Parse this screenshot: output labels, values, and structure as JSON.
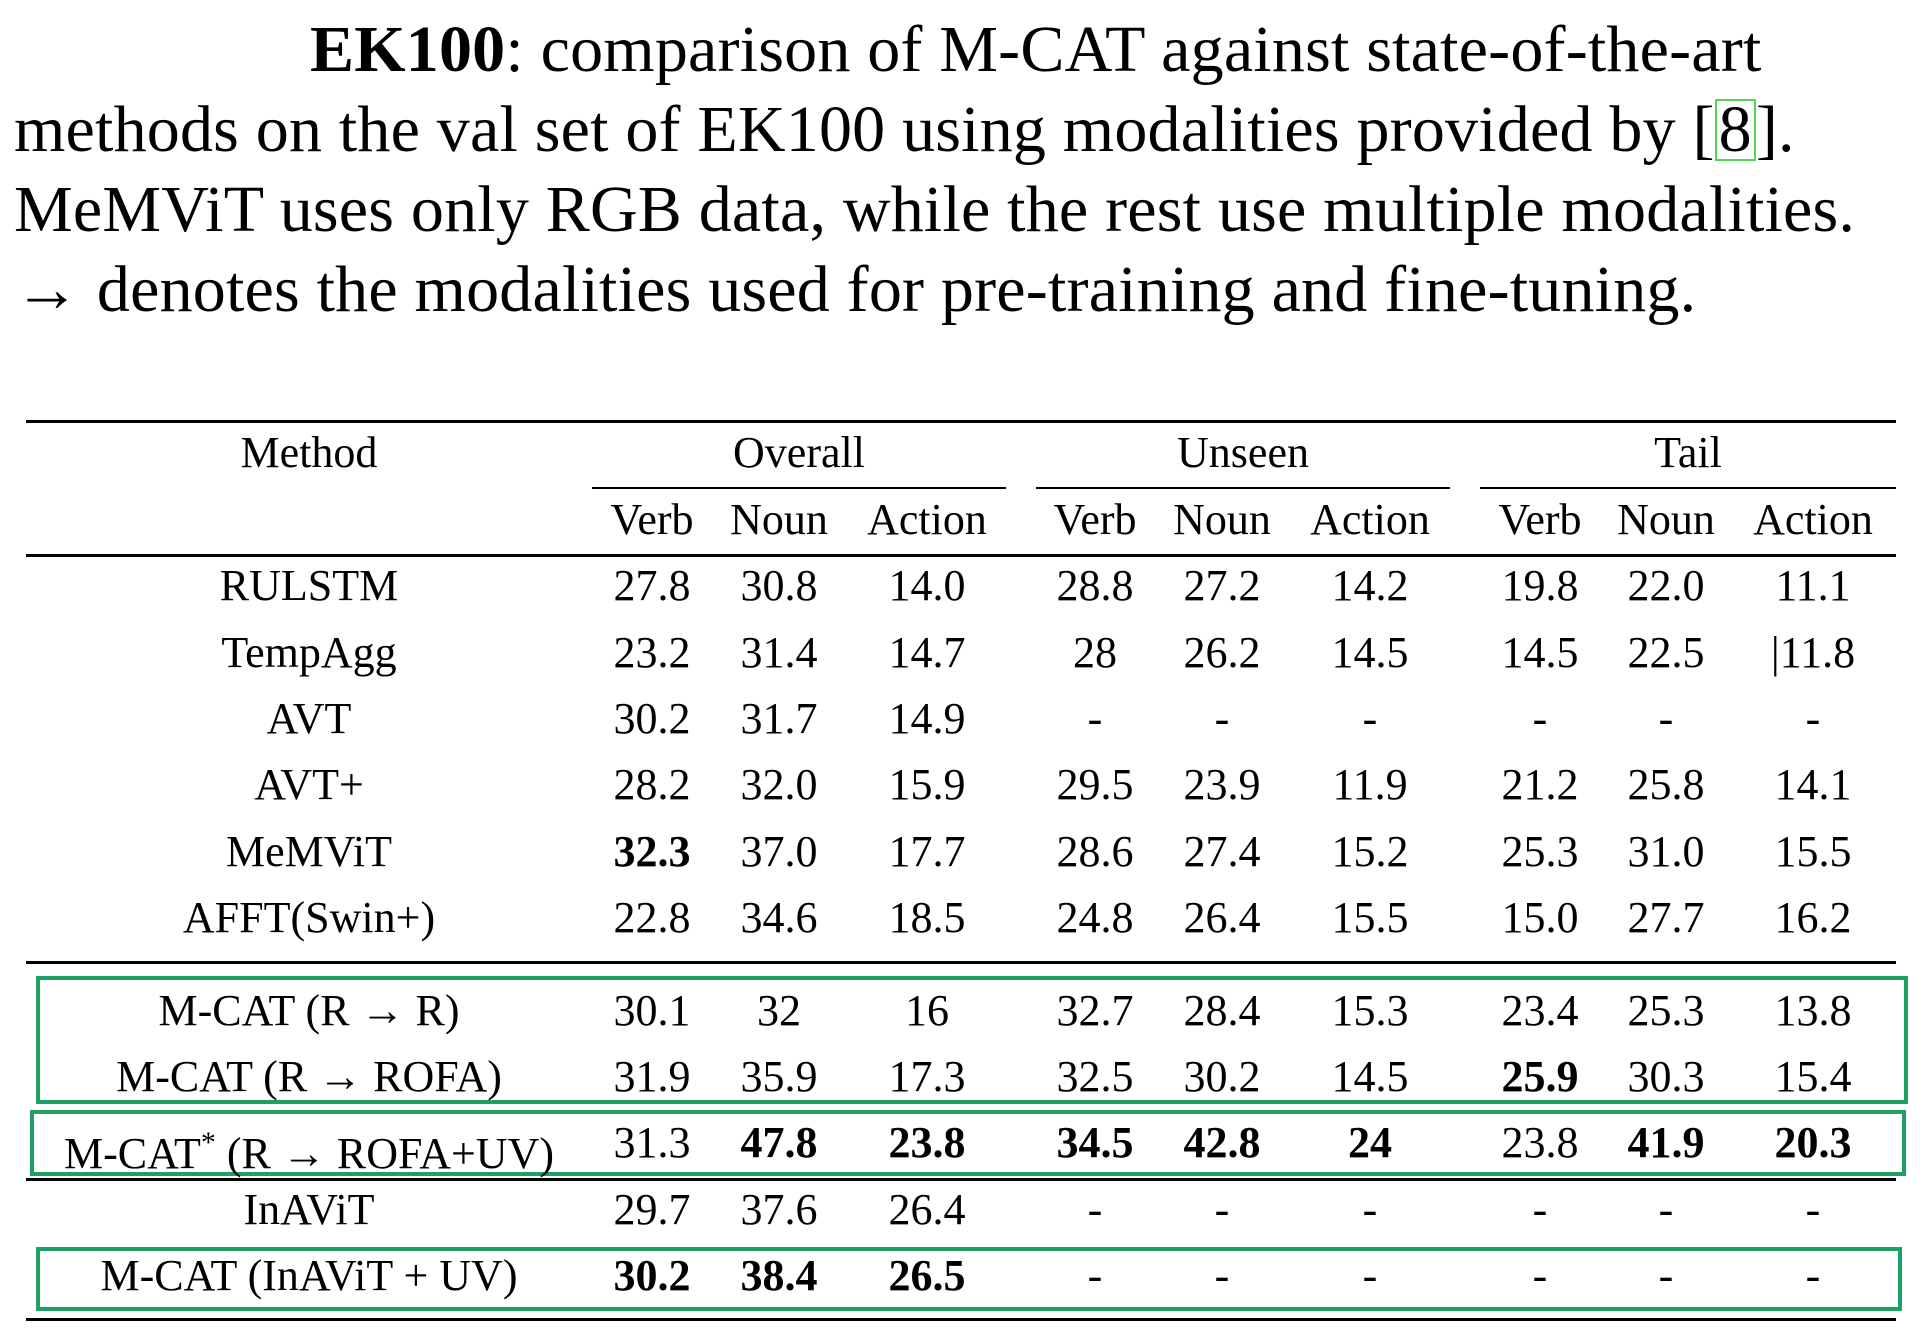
{
  "caption": {
    "label": "EK100",
    "line1_rest": ":  comparison of M-CAT against state-of-the-art",
    "line2_pre": "methods on the val set of EK100 using modalities provided by [",
    "line2_ref": "8",
    "line2_post": "].",
    "line3": "MeMViT uses only RGB data, while the rest use multiple modalities.",
    "line4": "→ denotes the modalities used for pre-training and fine-tuning."
  },
  "table": {
    "method_header": "Method",
    "groups": [
      "Overall",
      "Unseen",
      "Tail"
    ],
    "subheaders": [
      "Verb",
      "Noun",
      "Action",
      "Verb",
      "Noun",
      "Action",
      "Verb",
      "Noun",
      "Action"
    ],
    "rows": [
      {
        "method": "RULSTM",
        "values": [
          "27.8",
          "30.8",
          "14.0",
          "28.8",
          "27.2",
          "14.2",
          "19.8",
          "22.0",
          "11.1"
        ],
        "bold": []
      },
      {
        "method": "TempAgg",
        "values": [
          "23.2",
          "31.4",
          "14.7",
          "28",
          "26.2",
          "14.5",
          "14.5",
          "22.5",
          "|11.8"
        ],
        "bold": []
      },
      {
        "method": "AVT",
        "values": [
          "30.2",
          "31.7",
          "14.9",
          "-",
          "-",
          "-",
          "-",
          "-",
          "-"
        ],
        "bold": []
      },
      {
        "method": "AVT+",
        "values": [
          "28.2",
          "32.0",
          "15.9",
          "29.5",
          "23.9",
          "11.9",
          "21.2",
          "25.8",
          "14.1"
        ],
        "bold": []
      },
      {
        "method": "MeMViT",
        "values": [
          "32.3",
          "37.0",
          "17.7",
          "28.6",
          "27.4",
          "15.2",
          "25.3",
          "31.0",
          "15.5"
        ],
        "bold": [
          0
        ]
      },
      {
        "method": "AFFT(Swin+)",
        "values": [
          "22.8",
          "34.6",
          "18.5",
          "24.8",
          "26.4",
          "15.5",
          "15.0",
          "27.7",
          "16.2"
        ],
        "bold": []
      },
      {
        "method": "M-CAT (R → R)",
        "values": [
          "30.1",
          "32",
          "16",
          "32.7",
          "28.4",
          "15.3",
          "23.4",
          "25.3",
          "13.8"
        ],
        "bold": []
      },
      {
        "method": "M-CAT (R → ROFA)",
        "values": [
          "31.9",
          "35.9",
          "17.3",
          "32.5",
          "30.2",
          "14.5",
          "25.9",
          "30.3",
          "15.4"
        ],
        "bold": [
          6
        ]
      },
      {
        "method": "M-CAT",
        "method_sup": "*",
        "method_rest": " (R → ROFA+UV)",
        "values": [
          "31.3",
          "47.8",
          "23.8",
          "34.5",
          "42.8",
          "24",
          "23.8",
          "41.9",
          "20.3"
        ],
        "bold": [
          1,
          2,
          3,
          4,
          5,
          7,
          8
        ]
      },
      {
        "method": "InAViT",
        "values": [
          "29.7",
          "37.6",
          "26.4",
          "-",
          "-",
          "-",
          "-",
          "-",
          "-"
        ],
        "bold": []
      },
      {
        "method": "M-CAT (InAViT + UV)",
        "values": [
          "30.2",
          "38.4",
          "26.5",
          "-",
          "-",
          "-",
          "-",
          "-",
          "-"
        ],
        "bold": [
          0,
          1,
          2
        ]
      }
    ]
  },
  "colors": {
    "highlight_box": "#1ea064",
    "ref_box": "#55d455"
  }
}
